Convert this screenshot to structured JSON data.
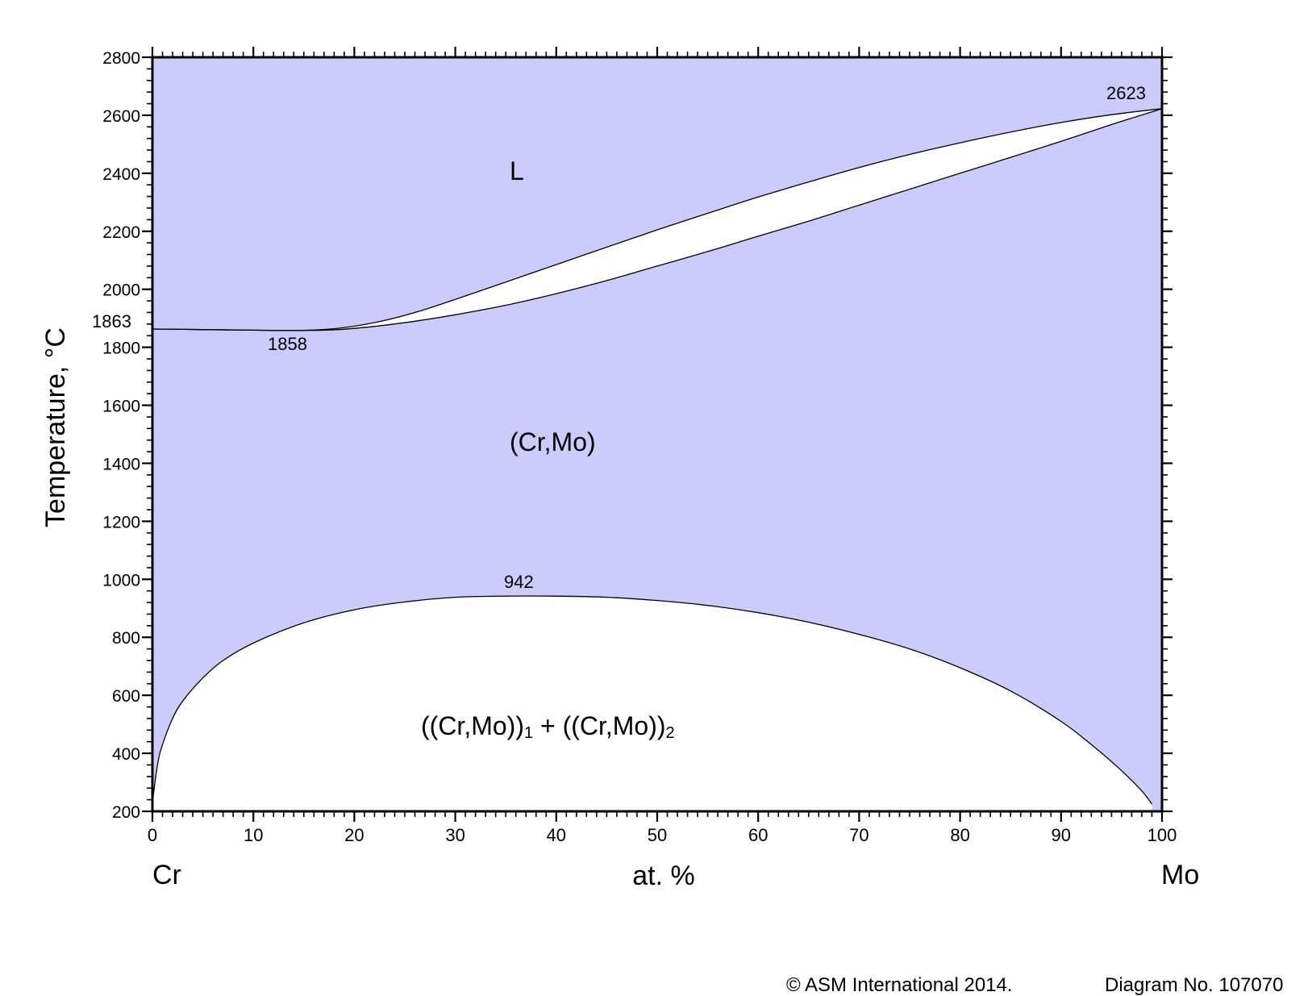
{
  "chart_data": {
    "type": "area",
    "title": "",
    "xlabel": "at. %",
    "ylabel": "Temperature, °C",
    "xlim": [
      0,
      100
    ],
    "ylim": [
      200,
      2800
    ],
    "x_ticks": [
      0,
      10,
      20,
      30,
      40,
      50,
      60,
      70,
      80,
      90,
      100
    ],
    "y_ticks": [
      200,
      400,
      600,
      800,
      1000,
      1200,
      1400,
      1600,
      1800,
      2000,
      2200,
      2400,
      2600,
      2800
    ],
    "grid": false,
    "components": {
      "left": "Cr",
      "right": "Mo"
    },
    "phase_labels": [
      {
        "text": "L",
        "x": 36,
        "y": 2400
      },
      {
        "text": "(Cr,Mo)",
        "x": 40.5,
        "y": 1450
      },
      {
        "text": "((Cr,Mo))",
        "sub1": "1",
        "plus": " + ((Cr,Mo))",
        "sub2": "2",
        "x": 27,
        "y": 490
      }
    ],
    "annotations": [
      {
        "text": "1863",
        "x": 0,
        "y": 1863
      },
      {
        "text": "1858",
        "x": 14,
        "y": 1858
      },
      {
        "text": "942",
        "x": 38,
        "y": 942
      },
      {
        "text": "2623",
        "x": 100,
        "y": 2623
      }
    ],
    "liquidus": {
      "x": [
        0,
        5,
        10,
        14,
        18,
        22,
        26,
        30,
        35,
        40,
        45,
        50,
        55,
        60,
        65,
        70,
        75,
        80,
        85,
        90,
        95,
        100
      ],
      "y": [
        1863,
        1861,
        1859,
        1858,
        1864,
        1885,
        1920,
        1965,
        2025,
        2085,
        2145,
        2205,
        2262,
        2318,
        2370,
        2420,
        2465,
        2505,
        2542,
        2575,
        2602,
        2623
      ]
    },
    "solidus": {
      "x": [
        0,
        5,
        10,
        14,
        18,
        22,
        26,
        30,
        35,
        40,
        45,
        50,
        55,
        60,
        65,
        70,
        75,
        80,
        85,
        90,
        95,
        100
      ],
      "y": [
        1863,
        1861,
        1859,
        1858,
        1860,
        1872,
        1890,
        1912,
        1945,
        1985,
        2030,
        2080,
        2130,
        2183,
        2235,
        2290,
        2345,
        2400,
        2455,
        2510,
        2568,
        2623
      ]
    },
    "miscibility_gap": {
      "x": [
        0,
        0.5,
        1,
        2,
        3,
        5,
        7,
        10,
        15,
        20,
        25,
        30,
        35,
        40,
        45,
        50,
        55,
        60,
        65,
        70,
        75,
        80,
        85,
        90,
        93,
        96,
        98,
        99
      ],
      "y": [
        230,
        360,
        430,
        520,
        580,
        660,
        720,
        780,
        850,
        895,
        922,
        938,
        942,
        942,
        938,
        927,
        910,
        885,
        852,
        810,
        760,
        695,
        615,
        510,
        430,
        340,
        270,
        225
      ]
    },
    "colors": {
      "single_phase_fill": "#ccccfc",
      "two_phase_fill": "#ffffff",
      "line": "#000000"
    }
  },
  "footer": {
    "copyright": "© ASM International 2014.",
    "diagram_no": "Diagram No. 107070"
  }
}
